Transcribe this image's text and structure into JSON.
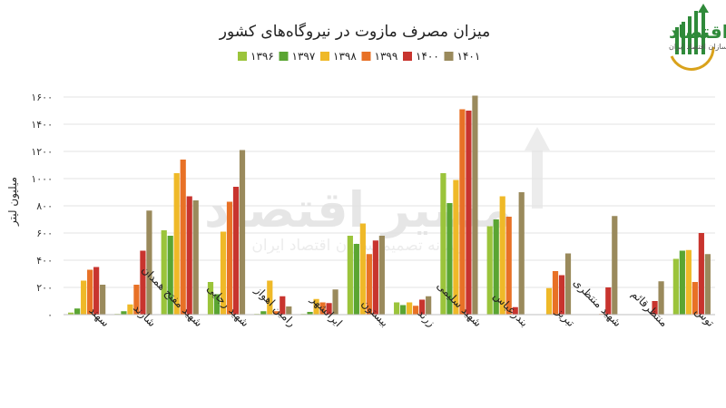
{
  "brand": {
    "name": "مسیر اقتصاد",
    "tagline": "رسانه تصمیم سازان اقتصاد ایران",
    "colors": {
      "green": "#2f8a3a",
      "gold": "#d9a21b"
    }
  },
  "chart_data": {
    "type": "bar",
    "title": "میزان مصرف مازوت در نیروگاه‌های کشور",
    "ylabel": "میلیون لیتر",
    "xlabel": "",
    "ylim": [
      0,
      1600
    ],
    "yticks": [
      "۰",
      "۲۰۰",
      "۴۰۰",
      "۶۰۰",
      "۸۰۰",
      "۱۰۰۰",
      "۱۲۰۰",
      "۱۴۰۰",
      "۱۶۰۰"
    ],
    "ytick_values": [
      0,
      200,
      400,
      600,
      800,
      1000,
      1200,
      1400,
      1600
    ],
    "grid": true,
    "legend_position": "top",
    "categories": [
      "سهند",
      "شازند",
      "شهید مفتح همدان",
      "شهید رجایی",
      "رامین اهواز",
      "ایرانشهر",
      "بیستون",
      "زرند",
      "شهید سلیمی",
      "بندرعباس",
      "تبریز",
      "شهید منتظری",
      "منتظرقائم",
      "توس"
    ],
    "series": [
      {
        "name": "۱۳۹۶",
        "color": "#9bc43b",
        "values": [
          15,
          5,
          620,
          240,
          5,
          5,
          580,
          90,
          1040,
          650,
          0,
          0,
          0,
          410
        ]
      },
      {
        "name": "۱۳۹۷",
        "color": "#5aa532",
        "values": [
          45,
          25,
          580,
          150,
          25,
          20,
          520,
          70,
          820,
          700,
          0,
          0,
          0,
          470
        ]
      },
      {
        "name": "۱۳۹۸",
        "color": "#efb928",
        "values": [
          250,
          75,
          1040,
          610,
          250,
          115,
          670,
          90,
          990,
          870,
          195,
          0,
          0,
          475
        ]
      },
      {
        "name": "۱۳۹۹",
        "color": "#e87126",
        "values": [
          330,
          220,
          1140,
          830,
          25,
          90,
          445,
          65,
          1510,
          720,
          320,
          5,
          0,
          240
        ]
      },
      {
        "name": "۱۴۰۰",
        "color": "#c8342e",
        "values": [
          350,
          470,
          870,
          940,
          135,
          85,
          545,
          110,
          1500,
          55,
          290,
          200,
          100,
          600
        ]
      },
      {
        "name": "۱۴۰۱",
        "color": "#9a8a5c",
        "values": [
          220,
          765,
          840,
          1210,
          60,
          185,
          580,
          135,
          1610,
          900,
          450,
          725,
          245,
          445
        ]
      }
    ]
  }
}
